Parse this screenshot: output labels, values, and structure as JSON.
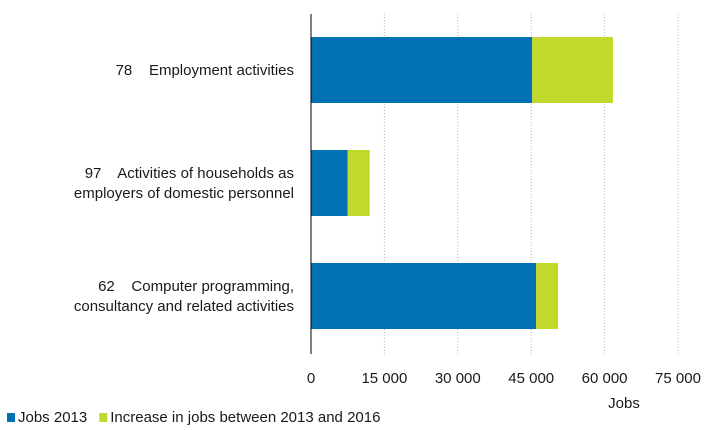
{
  "chart_data": {
    "type": "bar",
    "orientation": "horizontal",
    "stacked": true,
    "categories": [
      [
        "78    Employment activities"
      ],
      [
        "97    Activities of households as",
        "employers of domestic personnel"
      ],
      [
        "62    Computer programming,",
        "consultancy and related activities"
      ]
    ],
    "series": [
      {
        "name": "Jobs 2013",
        "color": "#0072b3",
        "values": [
          45200,
          7500,
          46000
        ]
      },
      {
        "name": "Increase in jobs between 2013 and 2016",
        "color": "#c3d82c",
        "values": [
          16500,
          4500,
          4500
        ]
      }
    ],
    "xlim": [
      0,
      75000
    ],
    "xticks": [
      0,
      15000,
      30000,
      45000,
      60000,
      75000
    ],
    "xtick_labels": [
      "0",
      "15 000",
      "30 000",
      "45 000",
      "60 000",
      "75 000"
    ],
    "xlabel": "Jobs",
    "grid": "vertical-dotted",
    "legend_position": "bottom-left"
  }
}
